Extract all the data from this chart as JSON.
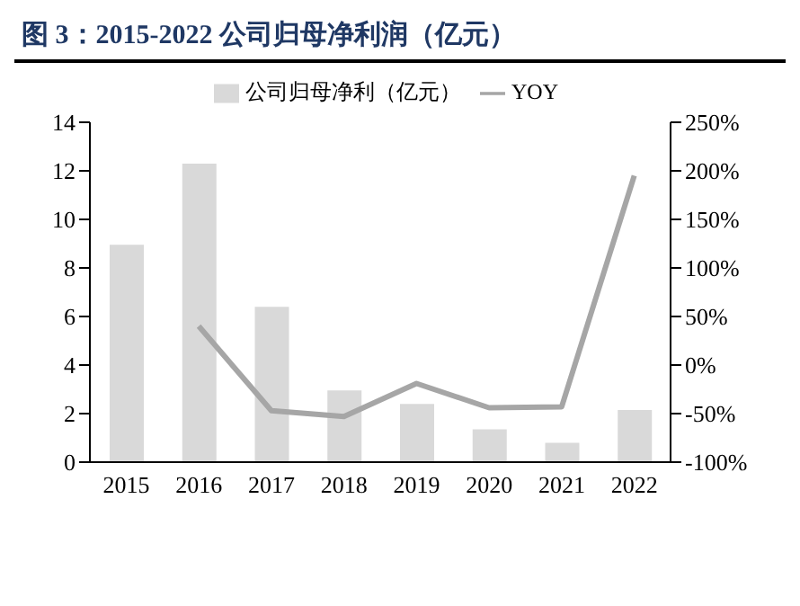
{
  "chart_data": {
    "type": "bar",
    "title": "图 3：2015-2022 公司归母净利润（亿元）",
    "categories": [
      "2015",
      "2016",
      "2017",
      "2018",
      "2019",
      "2020",
      "2021",
      "2022"
    ],
    "series": [
      {
        "name": "公司归母净利（亿元）",
        "color": "#d9d9d9",
        "values": [
          8.95,
          12.3,
          6.4,
          2.95,
          2.4,
          1.35,
          0.8,
          2.15
        ]
      },
      {
        "name": "YOY",
        "type": "line",
        "axis": "y2",
        "color": "#a6a6a6",
        "values": [
          null,
          40,
          -47,
          -53,
          -19,
          -44,
          -43,
          195
        ]
      }
    ],
    "ylim": [
      0,
      14
    ],
    "yticks": [
      0,
      2,
      4,
      6,
      8,
      10,
      12,
      14
    ],
    "y2lim": [
      -100,
      250
    ],
    "y2ticks": [
      {
        "value": -100,
        "label": "-100%"
      },
      {
        "value": -50,
        "label": "-50%"
      },
      {
        "value": 0,
        "label": "0%"
      },
      {
        "value": 50,
        "label": "50%"
      },
      {
        "value": 100,
        "label": "100%"
      },
      {
        "value": 150,
        "label": "150%"
      },
      {
        "value": 200,
        "label": "200%"
      },
      {
        "value": 250,
        "label": "250%"
      }
    ],
    "legend": "top",
    "grid": false,
    "marker": "none"
  }
}
